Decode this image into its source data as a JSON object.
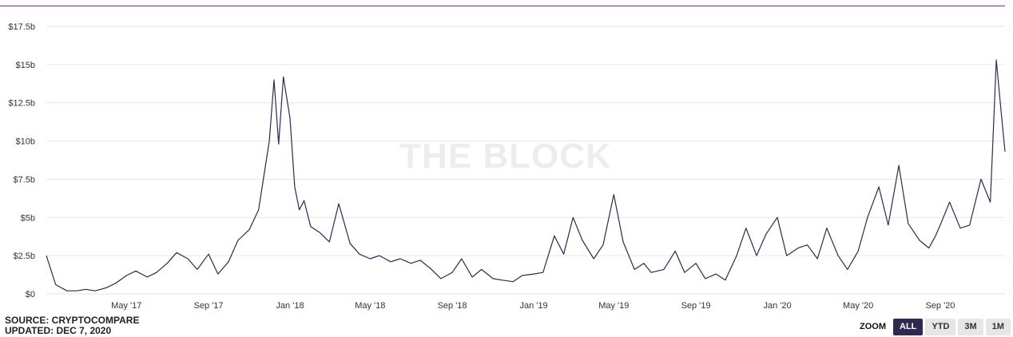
{
  "colors": {
    "accent": "#8b1fb7",
    "line": "#2e2950",
    "grid": "#e6e6e6",
    "active_button": "#2e2950"
  },
  "watermark": "THE BLOCK",
  "source": {
    "line1": "SOURCE: CRYPTOCOMPARE",
    "line2": "UPDATED: DEC 7, 2020"
  },
  "zoom": {
    "label": "ZOOM",
    "buttons": [
      "ALL",
      "YTD",
      "3M",
      "1M"
    ],
    "active": "ALL"
  },
  "chart_data": {
    "type": "line",
    "title": "",
    "xlabel": "",
    "ylabel": "",
    "ylim": [
      0,
      17.5
    ],
    "xlim": [
      "2017-01-01",
      "2020-12-07"
    ],
    "y_ticks": [
      0,
      2.5,
      5,
      7.5,
      10,
      12.5,
      15,
      17.5
    ],
    "y_tick_labels": [
      "$0",
      "$2.5b",
      "$5b",
      "$7.5b",
      "$10b",
      "$12.5b",
      "$15b",
      "$17.5b"
    ],
    "x_ticks": [
      "2017-05-01",
      "2017-09-01",
      "2018-01-01",
      "2018-05-01",
      "2018-09-01",
      "2019-01-01",
      "2019-05-01",
      "2019-09-01",
      "2020-01-01",
      "2020-05-01",
      "2020-09-01"
    ],
    "x_tick_labels": [
      "May '17",
      "Sep '17",
      "Jan '18",
      "May '18",
      "Sep '18",
      "Jan '19",
      "May '19",
      "Sep '19",
      "Jan '20",
      "May '20",
      "Sep '20"
    ],
    "grid": true,
    "legend": "none",
    "series": [
      {
        "x": [
          "2017-01-01",
          "2017-01-15",
          "2017-02-01",
          "2017-02-15",
          "2017-03-01",
          "2017-03-15",
          "2017-04-01",
          "2017-04-15",
          "2017-05-01",
          "2017-05-15",
          "2017-06-01",
          "2017-06-15",
          "2017-07-01",
          "2017-07-15",
          "2017-08-01",
          "2017-08-15",
          "2017-09-01",
          "2017-09-15",
          "2017-10-01",
          "2017-10-15",
          "2017-11-01",
          "2017-11-15",
          "2017-12-01",
          "2017-12-08",
          "2017-12-15",
          "2017-12-22",
          "2018-01-01",
          "2018-01-08",
          "2018-01-15",
          "2018-01-22",
          "2018-02-01",
          "2018-02-15",
          "2018-03-01",
          "2018-03-15",
          "2018-04-01",
          "2018-04-15",
          "2018-05-01",
          "2018-05-15",
          "2018-06-01",
          "2018-06-15",
          "2018-07-01",
          "2018-07-15",
          "2018-08-01",
          "2018-08-15",
          "2018-09-01",
          "2018-09-15",
          "2018-10-01",
          "2018-10-15",
          "2018-11-01",
          "2018-11-15",
          "2018-12-01",
          "2018-12-15",
          "2019-01-01",
          "2019-01-15",
          "2019-02-01",
          "2019-02-15",
          "2019-03-01",
          "2019-03-15",
          "2019-04-01",
          "2019-04-15",
          "2019-05-01",
          "2019-05-15",
          "2019-06-01",
          "2019-06-15",
          "2019-06-26",
          "2019-07-15",
          "2019-08-01",
          "2019-08-15",
          "2019-09-01",
          "2019-09-15",
          "2019-10-01",
          "2019-10-15",
          "2019-11-01",
          "2019-11-15",
          "2019-12-01",
          "2019-12-15",
          "2020-01-01",
          "2020-01-15",
          "2020-02-01",
          "2020-02-15",
          "2020-03-01",
          "2020-03-15",
          "2020-04-01",
          "2020-04-15",
          "2020-05-01",
          "2020-05-15",
          "2020-06-01",
          "2020-06-15",
          "2020-07-01",
          "2020-07-15",
          "2020-08-01",
          "2020-08-15",
          "2020-08-25",
          "2020-09-01",
          "2020-09-15",
          "2020-10-01",
          "2020-10-15",
          "2020-11-01",
          "2020-11-15",
          "2020-11-24",
          "2020-12-01",
          "2020-12-07"
        ],
        "values": [
          2.5,
          0.6,
          0.2,
          0.2,
          0.3,
          0.2,
          0.4,
          0.7,
          1.2,
          1.5,
          1.1,
          1.4,
          2.0,
          2.7,
          2.3,
          1.6,
          2.6,
          1.3,
          2.1,
          3.5,
          4.2,
          5.5,
          10.0,
          14.0,
          9.8,
          14.2,
          11.5,
          7.0,
          5.5,
          6.1,
          4.4,
          4.0,
          3.4,
          5.9,
          3.3,
          2.6,
          2.3,
          2.5,
          2.1,
          2.3,
          2.0,
          2.2,
          1.6,
          1.0,
          1.4,
          2.3,
          1.1,
          1.6,
          1.0,
          0.9,
          0.8,
          1.2,
          1.3,
          1.4,
          3.8,
          2.6,
          5.0,
          3.5,
          2.3,
          3.2,
          6.5,
          3.4,
          1.6,
          2.0,
          1.4,
          1.6,
          2.8,
          1.4,
          2.0,
          1.0,
          1.3,
          0.9,
          2.5,
          4.3,
          2.5,
          3.9,
          5.0,
          2.5,
          3.0,
          3.2,
          2.3,
          4.3,
          2.5,
          1.6,
          2.8,
          5.0,
          7.0,
          4.5,
          8.4,
          4.6,
          3.5,
          3.0,
          3.8,
          4.5,
          6.0,
          4.3,
          4.5,
          7.5,
          6.0,
          15.3,
          12.0,
          9.3
        ]
      }
    ]
  }
}
